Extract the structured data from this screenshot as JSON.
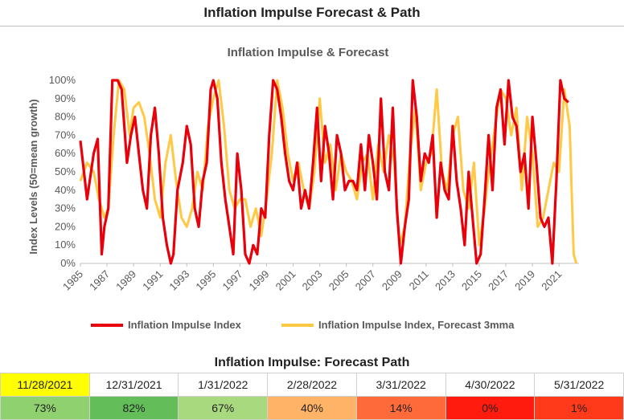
{
  "page": {
    "title": "Inflation Impulse Forecast & Path"
  },
  "chart_data": {
    "type": "line",
    "title": "Inflation Impulse & Forecast",
    "xlabel": "",
    "ylabel": "Index Levels (50=mean growth)",
    "xlim": [
      1985,
      2022.5
    ],
    "ylim": [
      0,
      100
    ],
    "yticks": [
      "0%",
      "10%",
      "20%",
      "30%",
      "40%",
      "50%",
      "60%",
      "70%",
      "80%",
      "90%",
      "100%"
    ],
    "xticks": [
      "1985",
      "1987",
      "1989",
      "1991",
      "1993",
      "1995",
      "1997",
      "1999",
      "2001",
      "2003",
      "2005",
      "2007",
      "2009",
      "2011",
      "2013",
      "2015",
      "2017",
      "2019",
      "2021"
    ],
    "grid": false,
    "legend": "bottom",
    "series": [
      {
        "name": "Inflation Impulse Index",
        "color": "#e8000b",
        "x": [
          1985.0,
          1985.5,
          1986.0,
          1986.3,
          1986.6,
          1986.8,
          1987.1,
          1987.4,
          1987.8,
          1988.1,
          1988.5,
          1988.8,
          1989.1,
          1989.4,
          1989.7,
          1990.0,
          1990.3,
          1990.6,
          1990.9,
          1991.2,
          1991.5,
          1991.8,
          1992.0,
          1992.3,
          1992.7,
          1993.0,
          1993.3,
          1993.6,
          1993.9,
          1994.2,
          1994.5,
          1994.8,
          1995.0,
          1995.3,
          1995.6,
          1995.9,
          1996.2,
          1996.5,
          1996.8,
          1997.1,
          1997.4,
          1997.7,
          1998.0,
          1998.3,
          1998.6,
          1998.9,
          1999.2,
          1999.5,
          1999.8,
          2000.1,
          2000.4,
          2000.7,
          2001.0,
          2001.3,
          2001.6,
          2001.9,
          2002.2,
          2002.5,
          2002.8,
          2003.1,
          2003.4,
          2003.7,
          2004.0,
          2004.3,
          2004.6,
          2004.9,
          2005.2,
          2005.5,
          2005.8,
          2006.1,
          2006.4,
          2006.7,
          2007.0,
          2007.3,
          2007.6,
          2007.9,
          2008.2,
          2008.5,
          2008.8,
          2009.1,
          2009.4,
          2009.7,
          2010.0,
          2010.3,
          2010.6,
          2010.9,
          2011.2,
          2011.5,
          2011.8,
          2012.1,
          2012.4,
          2012.7,
          2013.0,
          2013.3,
          2013.6,
          2013.9,
          2014.2,
          2014.5,
          2014.8,
          2015.1,
          2015.4,
          2015.7,
          2016.0,
          2016.3,
          2016.6,
          2016.9,
          2017.2,
          2017.5,
          2017.8,
          2018.1,
          2018.4,
          2018.7,
          2019.0,
          2019.3,
          2019.6,
          2019.9,
          2020.2,
          2020.5,
          2020.8,
          2021.1,
          2021.4,
          2021.7
        ],
        "values": [
          67,
          35,
          60,
          68,
          5,
          20,
          30,
          100,
          100,
          95,
          55,
          70,
          80,
          60,
          40,
          30,
          70,
          85,
          60,
          25,
          10,
          0,
          5,
          40,
          55,
          75,
          65,
          30,
          20,
          45,
          55,
          95,
          100,
          90,
          55,
          35,
          20,
          5,
          60,
          40,
          5,
          0,
          10,
          5,
          30,
          25,
          70,
          100,
          95,
          80,
          60,
          45,
          40,
          55,
          30,
          40,
          30,
          55,
          85,
          45,
          75,
          60,
          35,
          70,
          60,
          40,
          45,
          45,
          40,
          65,
          40,
          70,
          55,
          35,
          90,
          50,
          40,
          85,
          30,
          0,
          20,
          35,
          100,
          80,
          45,
          60,
          55,
          70,
          25,
          55,
          40,
          35,
          75,
          45,
          30,
          10,
          50,
          25,
          0,
          5,
          35,
          70,
          40,
          85,
          95,
          65,
          100,
          80,
          75,
          50,
          60,
          30,
          80,
          55,
          25,
          20,
          25,
          0,
          45,
          100,
          90,
          88
        ]
      },
      {
        "name": "Inflation Impulse Index, Forecast 3mma",
        "color": "#ffc845",
        "x": [
          1985.0,
          1985.5,
          1986.0,
          1986.4,
          1986.8,
          1987.1,
          1987.5,
          1987.9,
          1988.3,
          1988.7,
          1989.0,
          1989.4,
          1989.8,
          1990.2,
          1990.6,
          1991.0,
          1991.4,
          1991.8,
          1992.2,
          1992.6,
          1993.0,
          1993.4,
          1993.8,
          1994.2,
          1994.6,
          1995.0,
          1995.4,
          1995.8,
          1996.2,
          1996.6,
          1997.0,
          1997.4,
          1997.8,
          1998.2,
          1998.6,
          1999.0,
          1999.4,
          1999.8,
          2000.2,
          2000.6,
          2001.0,
          2001.4,
          2001.8,
          2002.2,
          2002.6,
          2003.0,
          2003.4,
          2003.8,
          2004.2,
          2004.6,
          2005.0,
          2005.4,
          2005.8,
          2006.2,
          2006.6,
          2007.0,
          2007.4,
          2007.8,
          2008.2,
          2008.6,
          2009.0,
          2009.4,
          2009.8,
          2010.2,
          2010.6,
          2011.0,
          2011.4,
          2011.8,
          2012.2,
          2012.6,
          2013.0,
          2013.4,
          2013.8,
          2014.2,
          2014.6,
          2015.0,
          2015.4,
          2015.8,
          2016.2,
          2016.6,
          2017.0,
          2017.4,
          2017.8,
          2018.2,
          2018.6,
          2019.0,
          2019.4,
          2019.8,
          2020.2,
          2020.6,
          2021.0,
          2021.4,
          2021.8,
          2022.1,
          2022.3
        ],
        "values": [
          45,
          55,
          50,
          35,
          25,
          30,
          70,
          100,
          95,
          70,
          85,
          88,
          80,
          60,
          35,
          25,
          55,
          70,
          45,
          25,
          20,
          30,
          50,
          40,
          75,
          90,
          100,
          75,
          40,
          30,
          35,
          35,
          20,
          30,
          15,
          35,
          60,
          100,
          85,
          60,
          45,
          55,
          40,
          30,
          50,
          90,
          55,
          65,
          40,
          60,
          50,
          45,
          35,
          55,
          60,
          35,
          65,
          50,
          70,
          55,
          10,
          20,
          60,
          85,
          40,
          55,
          60,
          95,
          50,
          40,
          70,
          80,
          40,
          30,
          55,
          10,
          30,
          55,
          75,
          95,
          90,
          70,
          85,
          40,
          80,
          60,
          20,
          25,
          40,
          55,
          50,
          95,
          75,
          5,
          0
        ]
      }
    ]
  },
  "forecast_path": {
    "title": "Inflation Impulse: Forecast Path",
    "dates": [
      "11/28/2021",
      "12/31/2021",
      "1/31/2022",
      "2/28/2022",
      "3/31/2022",
      "4/30/2022",
      "5/31/2022"
    ],
    "values": [
      "73%",
      "82%",
      "67%",
      "40%",
      "14%",
      "0%",
      "1%"
    ],
    "date_colors": [
      "#ffff00",
      "#ffffff",
      "#ffffff",
      "#ffffff",
      "#ffffff",
      "#ffffff",
      "#ffffff"
    ],
    "value_colors": [
      "#8fd16e",
      "#63be5a",
      "#a9d97f",
      "#ffb366",
      "#ff6a3a",
      "#ff1b0e",
      "#ff3a1a"
    ]
  }
}
